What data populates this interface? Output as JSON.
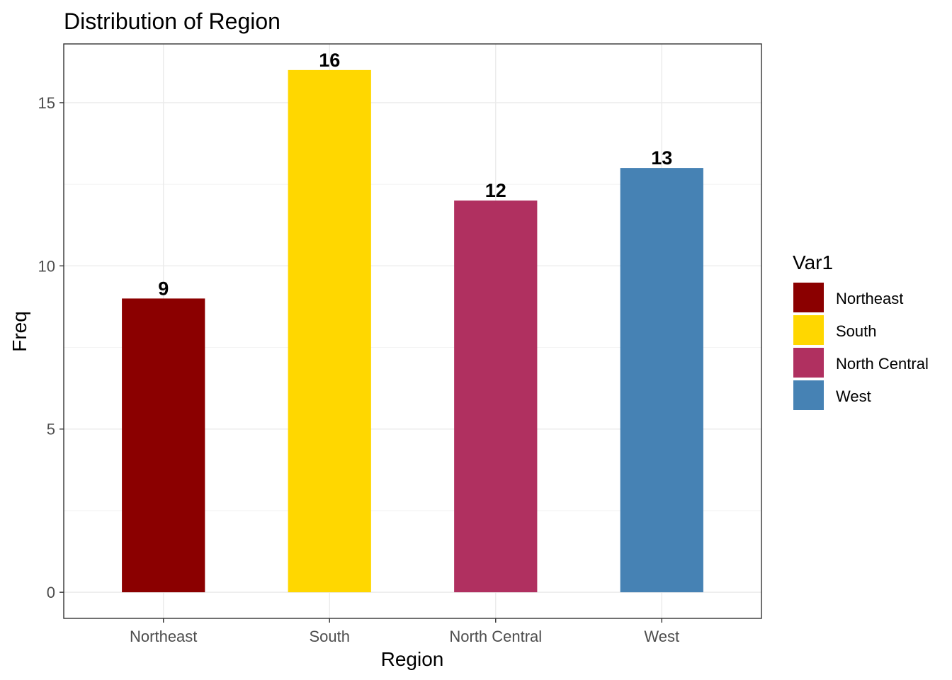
{
  "chart_data": {
    "type": "bar",
    "title": "Distribution of Region",
    "xlabel": "Region",
    "ylabel": "Freq",
    "categories": [
      "Northeast",
      "South",
      "North Central",
      "West"
    ],
    "values": [
      9,
      16,
      12,
      13
    ],
    "colors": [
      "#8b0000",
      "#ffd700",
      "#b03060",
      "#4682b4"
    ],
    "yticks": [
      0,
      5,
      10,
      15
    ],
    "ylim": [
      -0.8,
      16.8
    ],
    "grid": true,
    "legend": {
      "title": "Var1",
      "position": "right",
      "entries": [
        "Northeast",
        "South",
        "North Central",
        "West"
      ]
    }
  }
}
